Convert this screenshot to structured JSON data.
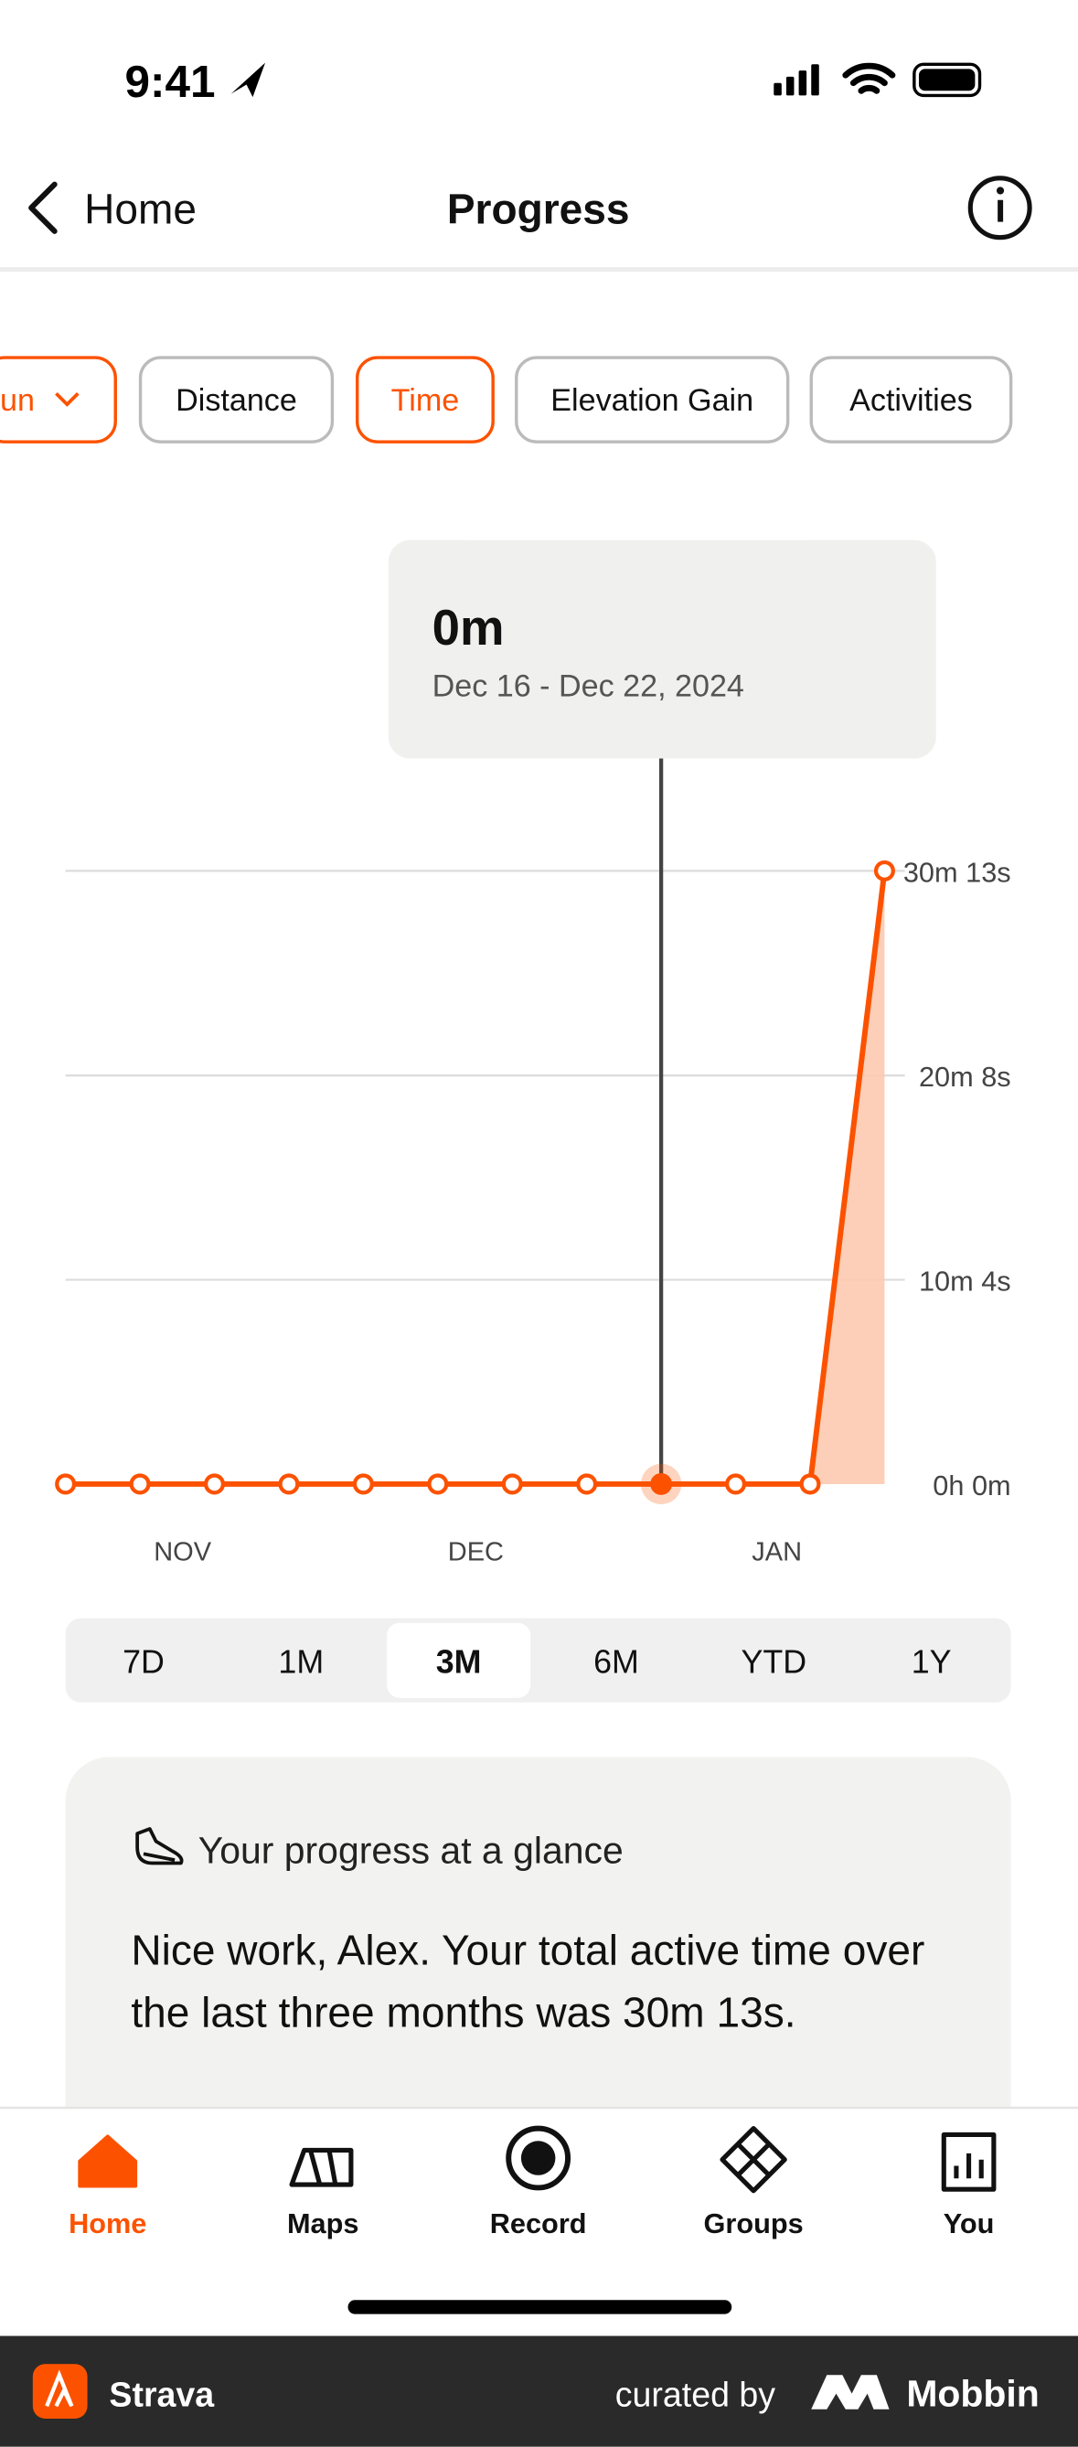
{
  "status_bar": {
    "time": "9:41"
  },
  "nav": {
    "back": "Home",
    "title": "Progress"
  },
  "filters": {
    "items": [
      "un",
      "Distance",
      "Time",
      "Elevation Gain",
      "Activities"
    ],
    "selected": "Time"
  },
  "chart_data": {
    "type": "line",
    "x_labels": [
      "NOV",
      "DEC",
      "JAN"
    ],
    "values": [
      0,
      0,
      0,
      0,
      0,
      0,
      0,
      0,
      0,
      0,
      0,
      1813
    ],
    "color": "#fc5200",
    "ylim": [
      0,
      1813
    ],
    "yticks": [
      {
        "value": 0,
        "label": "0h 0m"
      },
      {
        "value": 604,
        "label": "10m 4s"
      },
      {
        "value": 1208,
        "label": "20m 8s"
      },
      {
        "value": 1813,
        "label": "30m 13s"
      }
    ],
    "grid": true,
    "selected_index": 8,
    "tooltip": {
      "value": "0m",
      "date": "Dec 16 - Dec 22, 2024"
    }
  },
  "ranges": {
    "items": [
      "7D",
      "1M",
      "3M",
      "6M",
      "YTD",
      "1Y"
    ],
    "selected": "3M"
  },
  "card": {
    "title": "Your progress at a glance",
    "body": "Nice work, Alex. Your total active time over the last three months was 30m 13s."
  },
  "tab_bar": {
    "items": [
      "Home",
      "Maps",
      "Record",
      "Groups",
      "You"
    ],
    "selected": "Home"
  },
  "footer": {
    "app": "Strava",
    "curated": "curated by",
    "brand": "Mobbin"
  }
}
